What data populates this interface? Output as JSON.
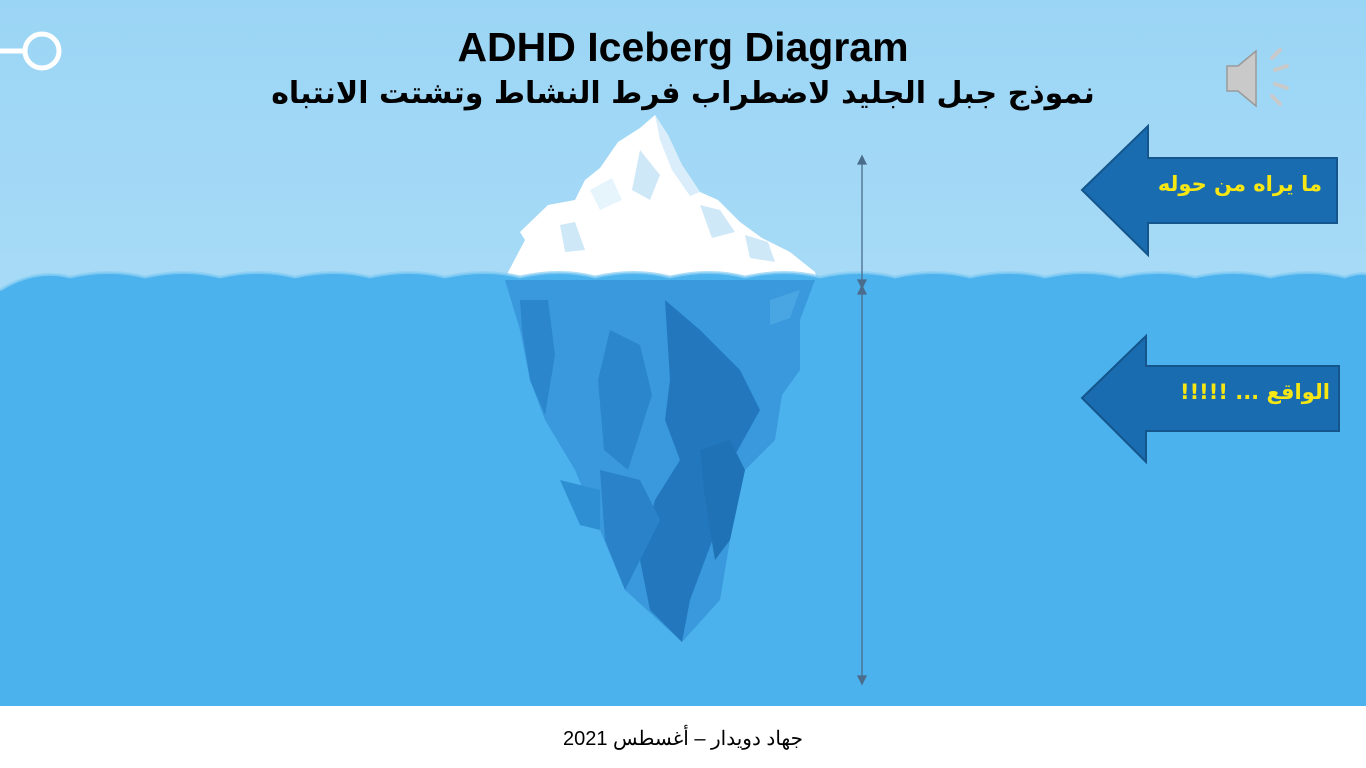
{
  "title_en": "ADHD Iceberg Diagram",
  "title_ar": "نموذج جبل الجليد لاضطراب فرط النشاط وتشتت الانتباه",
  "arrows": [
    {
      "label": "ما يراه من حوله"
    },
    {
      "label": "الواقع ... !!!!!"
    }
  ],
  "footer": "جهاد دويدار – أغسطس  2021",
  "icons": {
    "top_left": "key-icon",
    "top_right": "speaker-icon"
  },
  "colors": {
    "sky": "#9fd8f6",
    "water": "#4bb2ee",
    "arrow_fill": "#1a6cb0",
    "arrow_text": "#f5e614",
    "ice_white": "#ffffff",
    "ice_blue": "#2f8fd3"
  }
}
